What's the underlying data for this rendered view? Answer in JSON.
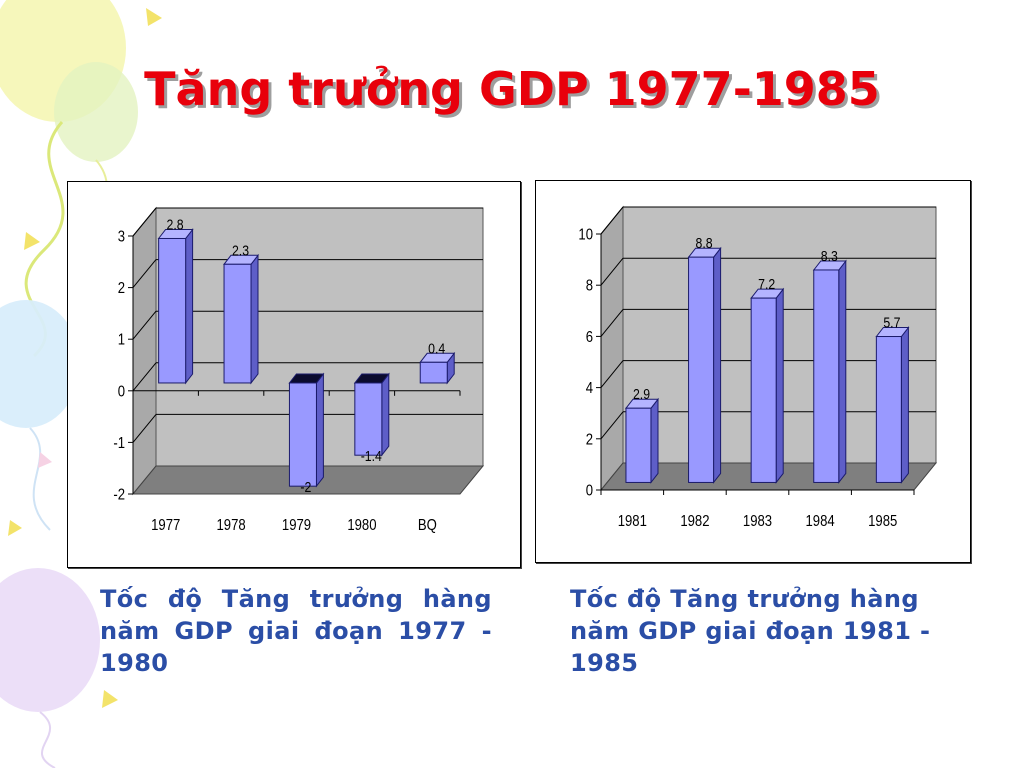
{
  "slide": {
    "title": "Tăng trưởng GDP 1977-1985"
  },
  "captions": {
    "left": "Tốc độ Tăng trưởng hàng năm GDP giai đoạn 1977 - 1980",
    "right": "Tốc độ Tăng trưởng hàng năm GDP giai đoạn 1981 - 1985"
  },
  "colors": {
    "title": "#e8000b",
    "caption": "#2b4ea6",
    "bar_front": "#9999ff",
    "bar_side": "#5e5ec8",
    "bar_top": "#b4b4ff",
    "bar_cap_negative": "#0b0b2e",
    "bar_outline": "#1b1b6b",
    "back_wall": "#c0c0c0",
    "side_wall": "#a9a9a9",
    "floor": "#7f7f7f",
    "gridline": "#000000",
    "axis_text": "#000000"
  },
  "chart_data": [
    {
      "type": "bar",
      "style": "3d-column",
      "categories": [
        "1977",
        "1978",
        "1979",
        "1980",
        "BQ"
      ],
      "values": [
        2.8,
        2.3,
        -2,
        -1.4,
        0.4
      ],
      "ylim": [
        -2,
        3
      ],
      "y_ticks": [
        -2,
        -1,
        0,
        1,
        2,
        3
      ],
      "data_labels": true,
      "grid": true,
      "legend": "none",
      "title": "",
      "xlabel": "",
      "ylabel": ""
    },
    {
      "type": "bar",
      "style": "3d-column",
      "categories": [
        "1981",
        "1982",
        "1983",
        "1984",
        "1985"
      ],
      "values": [
        2.9,
        8.8,
        7.2,
        8.3,
        5.7
      ],
      "ylim": [
        0,
        10
      ],
      "y_ticks": [
        0,
        2,
        4,
        6,
        8,
        10
      ],
      "data_labels": true,
      "grid": true,
      "legend": "none",
      "title": "",
      "xlabel": "",
      "ylabel": ""
    }
  ]
}
